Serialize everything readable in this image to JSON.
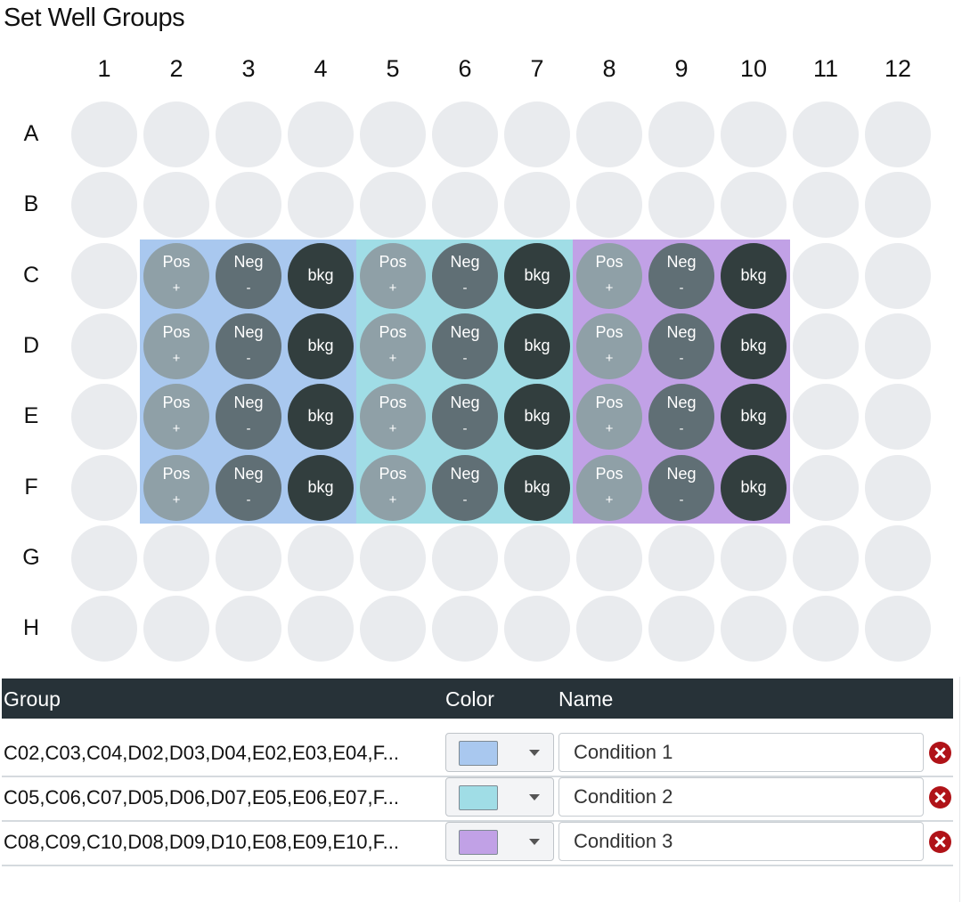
{
  "title": "Set Well Groups",
  "plate": {
    "columns": [
      "1",
      "2",
      "3",
      "4",
      "5",
      "6",
      "7",
      "8",
      "9",
      "10",
      "11",
      "12"
    ],
    "rows": [
      "A",
      "B",
      "C",
      "D",
      "E",
      "F",
      "G",
      "H"
    ],
    "well_labels": {
      "pos": {
        "top": "Pos",
        "bottom": "+"
      },
      "neg": {
        "top": "Neg",
        "bottom": "-"
      },
      "bkg": {
        "text": "bkg"
      }
    }
  },
  "table": {
    "headers": {
      "group": "Group",
      "color": "Color",
      "name": "Name"
    },
    "rows": [
      {
        "group": "C02,C03,C04,D02,D03,D04,E02,E03,E04,F...",
        "color": "#a9c8ef",
        "name": "Condition 1"
      },
      {
        "group": "C05,C06,C07,D05,D06,D07,E05,E06,E07,F...",
        "color": "#a0dde6",
        "name": "Condition 2"
      },
      {
        "group": "C08,C09,C10,D08,D09,D10,E08,E09,E10,F...",
        "color": "#c1a1e6",
        "name": "Condition 3"
      }
    ]
  }
}
